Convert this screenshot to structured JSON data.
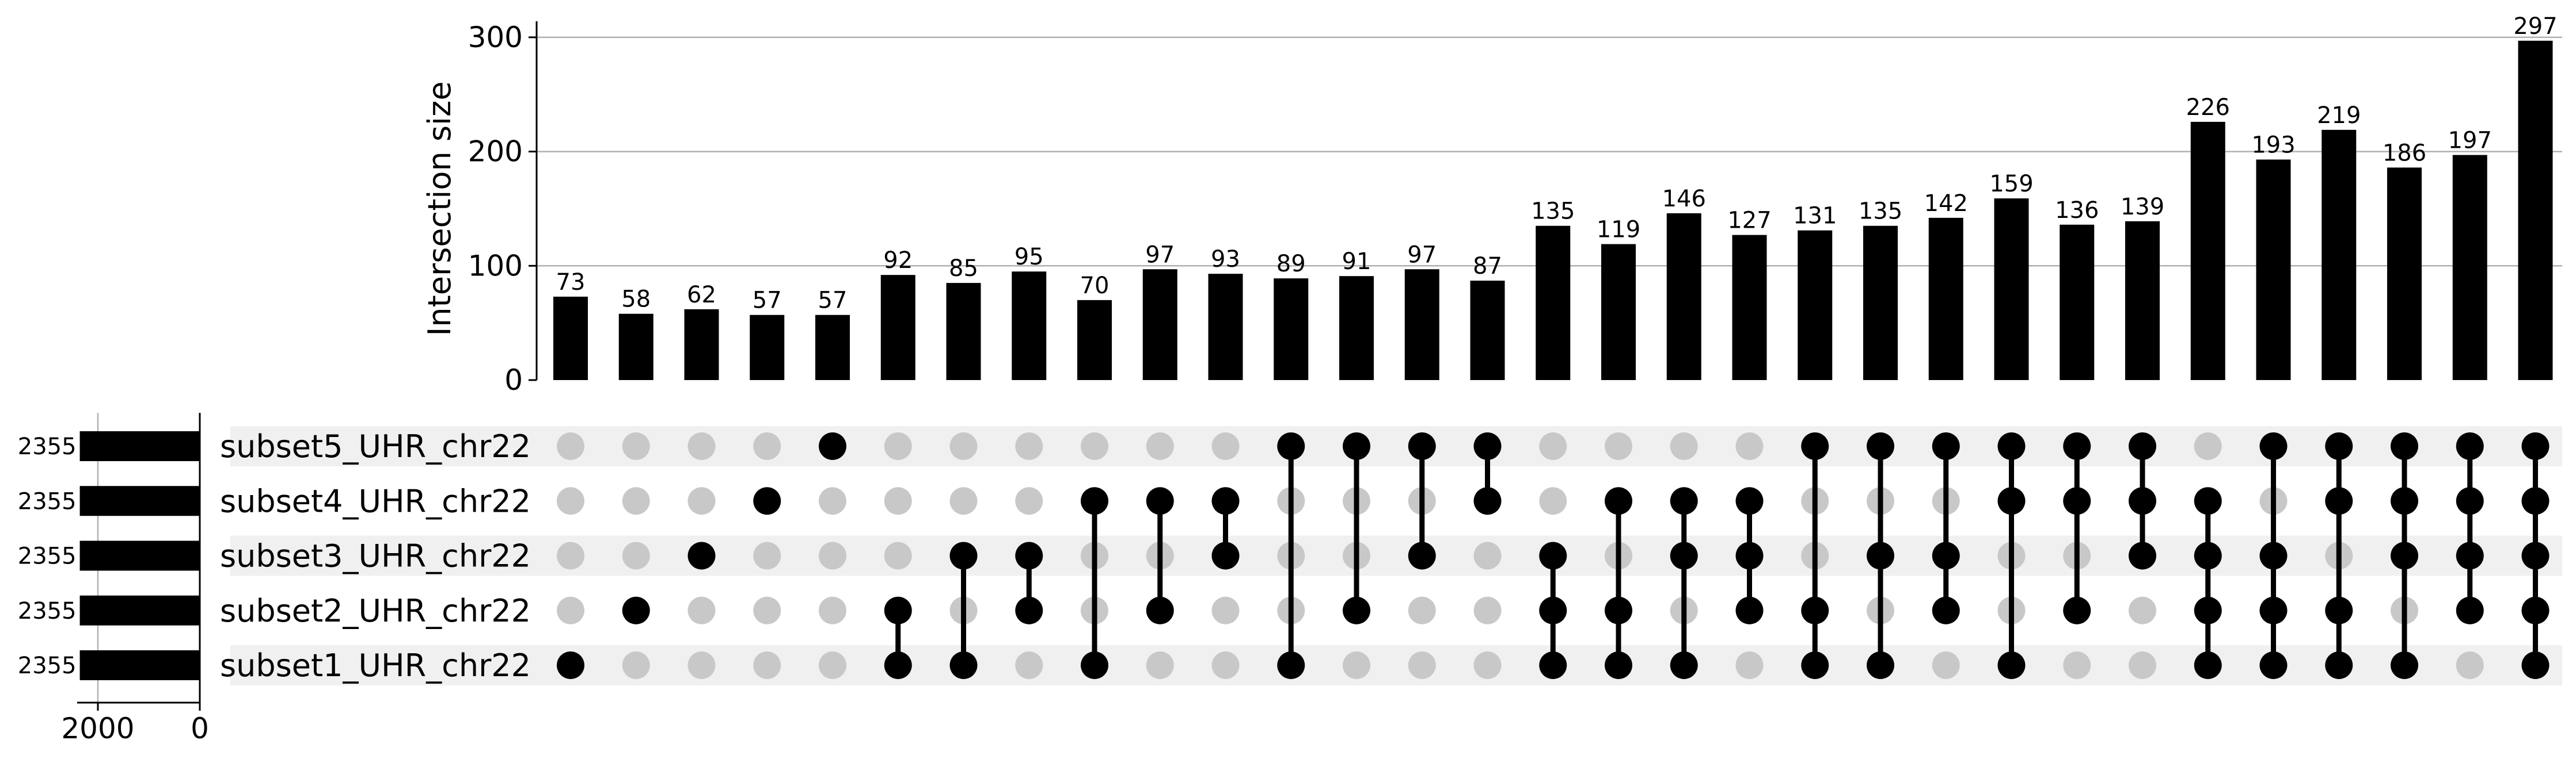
{
  "chart_data": {
    "type": "upset",
    "ylabel": "Intersection size",
    "ylim": [
      0,
      310
    ],
    "yticks": [
      0,
      100,
      200,
      300
    ],
    "grid": true,
    "sets": [
      {
        "name": "subset5_UHR_chr22",
        "size": 2355
      },
      {
        "name": "subset4_UHR_chr22",
        "size": 2355
      },
      {
        "name": "subset3_UHR_chr22",
        "size": 2355
      },
      {
        "name": "subset2_UHR_chr22",
        "size": 2355
      },
      {
        "name": "subset1_UHR_chr22",
        "size": 2355
      }
    ],
    "set_size_axis": {
      "ticks": [
        2000,
        0
      ],
      "max": 2600
    },
    "intersections": [
      {
        "sets": [
          "subset1_UHR_chr22"
        ],
        "value": 73
      },
      {
        "sets": [
          "subset2_UHR_chr22"
        ],
        "value": 58
      },
      {
        "sets": [
          "subset3_UHR_chr22"
        ],
        "value": 62
      },
      {
        "sets": [
          "subset4_UHR_chr22"
        ],
        "value": 57
      },
      {
        "sets": [
          "subset5_UHR_chr22"
        ],
        "value": 57
      },
      {
        "sets": [
          "subset2_UHR_chr22",
          "subset1_UHR_chr22"
        ],
        "value": 92
      },
      {
        "sets": [
          "subset3_UHR_chr22",
          "subset1_UHR_chr22"
        ],
        "value": 85
      },
      {
        "sets": [
          "subset3_UHR_chr22",
          "subset2_UHR_chr22"
        ],
        "value": 95
      },
      {
        "sets": [
          "subset4_UHR_chr22",
          "subset1_UHR_chr22"
        ],
        "value": 70
      },
      {
        "sets": [
          "subset4_UHR_chr22",
          "subset2_UHR_chr22"
        ],
        "value": 97
      },
      {
        "sets": [
          "subset4_UHR_chr22",
          "subset3_UHR_chr22"
        ],
        "value": 93
      },
      {
        "sets": [
          "subset5_UHR_chr22",
          "subset1_UHR_chr22"
        ],
        "value": 89
      },
      {
        "sets": [
          "subset5_UHR_chr22",
          "subset2_UHR_chr22"
        ],
        "value": 91
      },
      {
        "sets": [
          "subset5_UHR_chr22",
          "subset3_UHR_chr22"
        ],
        "value": 97
      },
      {
        "sets": [
          "subset5_UHR_chr22",
          "subset4_UHR_chr22"
        ],
        "value": 87
      },
      {
        "sets": [
          "subset3_UHR_chr22",
          "subset2_UHR_chr22",
          "subset1_UHR_chr22"
        ],
        "value": 135
      },
      {
        "sets": [
          "subset4_UHR_chr22",
          "subset2_UHR_chr22",
          "subset1_UHR_chr22"
        ],
        "value": 119
      },
      {
        "sets": [
          "subset4_UHR_chr22",
          "subset3_UHR_chr22",
          "subset1_UHR_chr22"
        ],
        "value": 146
      },
      {
        "sets": [
          "subset4_UHR_chr22",
          "subset3_UHR_chr22",
          "subset2_UHR_chr22"
        ],
        "value": 127
      },
      {
        "sets": [
          "subset5_UHR_chr22",
          "subset2_UHR_chr22",
          "subset1_UHR_chr22"
        ],
        "value": 131
      },
      {
        "sets": [
          "subset5_UHR_chr22",
          "subset3_UHR_chr22",
          "subset1_UHR_chr22"
        ],
        "value": 135
      },
      {
        "sets": [
          "subset5_UHR_chr22",
          "subset3_UHR_chr22",
          "subset2_UHR_chr22"
        ],
        "value": 142
      },
      {
        "sets": [
          "subset5_UHR_chr22",
          "subset4_UHR_chr22",
          "subset1_UHR_chr22"
        ],
        "value": 159
      },
      {
        "sets": [
          "subset5_UHR_chr22",
          "subset4_UHR_chr22",
          "subset2_UHR_chr22"
        ],
        "value": 136
      },
      {
        "sets": [
          "subset5_UHR_chr22",
          "subset4_UHR_chr22",
          "subset3_UHR_chr22"
        ],
        "value": 139
      },
      {
        "sets": [
          "subset4_UHR_chr22",
          "subset3_UHR_chr22",
          "subset2_UHR_chr22",
          "subset1_UHR_chr22"
        ],
        "value": 226
      },
      {
        "sets": [
          "subset5_UHR_chr22",
          "subset3_UHR_chr22",
          "subset2_UHR_chr22",
          "subset1_UHR_chr22"
        ],
        "value": 193
      },
      {
        "sets": [
          "subset5_UHR_chr22",
          "subset4_UHR_chr22",
          "subset2_UHR_chr22",
          "subset1_UHR_chr22"
        ],
        "value": 219
      },
      {
        "sets": [
          "subset5_UHR_chr22",
          "subset4_UHR_chr22",
          "subset3_UHR_chr22",
          "subset1_UHR_chr22"
        ],
        "value": 186
      },
      {
        "sets": [
          "subset5_UHR_chr22",
          "subset4_UHR_chr22",
          "subset3_UHR_chr22",
          "subset2_UHR_chr22"
        ],
        "value": 197
      },
      {
        "sets": [
          "subset5_UHR_chr22",
          "subset4_UHR_chr22",
          "subset3_UHR_chr22",
          "subset2_UHR_chr22",
          "subset1_UHR_chr22"
        ],
        "value": 297
      }
    ]
  },
  "colors": {
    "bar": "#000000",
    "dot_active": "#000000",
    "dot_inactive": "#c8c8c8",
    "row_shade": "#f0f0f0",
    "grid": "#b0b0b0"
  }
}
